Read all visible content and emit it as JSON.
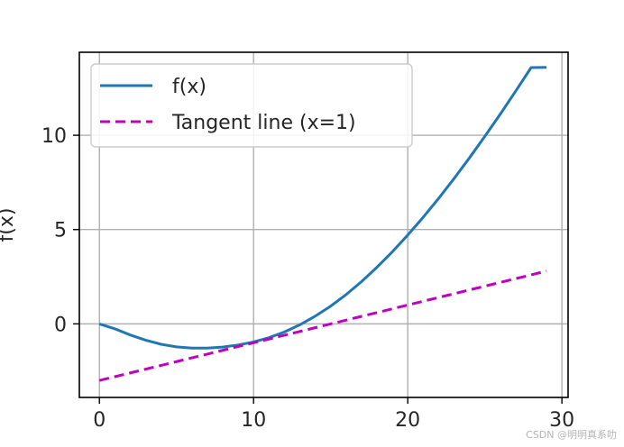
{
  "chart_data": {
    "type": "line",
    "title": "",
    "xlabel": "",
    "ylabel": "f(x)",
    "xlim": [
      -1.3,
      30.4
    ],
    "ylim": [
      -3.9,
      14.4
    ],
    "xticks": [
      0,
      10,
      20,
      30
    ],
    "yticks": [
      0,
      5,
      10
    ],
    "grid": true,
    "legend_position": "upper-left",
    "series": [
      {
        "name": "f(x)",
        "style": "solid",
        "color": "#1f77b4",
        "x": [
          0,
          1,
          2,
          3,
          4,
          5,
          6,
          7,
          8,
          9,
          10,
          11,
          12,
          13,
          14,
          15,
          16,
          17,
          18,
          19,
          20,
          21,
          22,
          23,
          24,
          25,
          26,
          27,
          28,
          29
        ],
        "y": [
          0,
          -0.26,
          -0.59,
          -0.86,
          -1.08,
          -1.22,
          -1.28,
          -1.28,
          -1.23,
          -1.12,
          -0.96,
          -0.73,
          -0.43,
          -0.05,
          0.41,
          0.94,
          1.55,
          2.24,
          3.0,
          3.82,
          4.71,
          5.65,
          6.65,
          7.7,
          8.8,
          9.94,
          11.12,
          12.34,
          13.59,
          13.6
        ]
      },
      {
        "name": "Tangent line (x=1)",
        "style": "dashed",
        "color": "#bf00bf",
        "x": [
          0,
          29
        ],
        "y": [
          -3,
          2.8
        ]
      }
    ]
  },
  "watermark": "CSDN @明明真系叻"
}
